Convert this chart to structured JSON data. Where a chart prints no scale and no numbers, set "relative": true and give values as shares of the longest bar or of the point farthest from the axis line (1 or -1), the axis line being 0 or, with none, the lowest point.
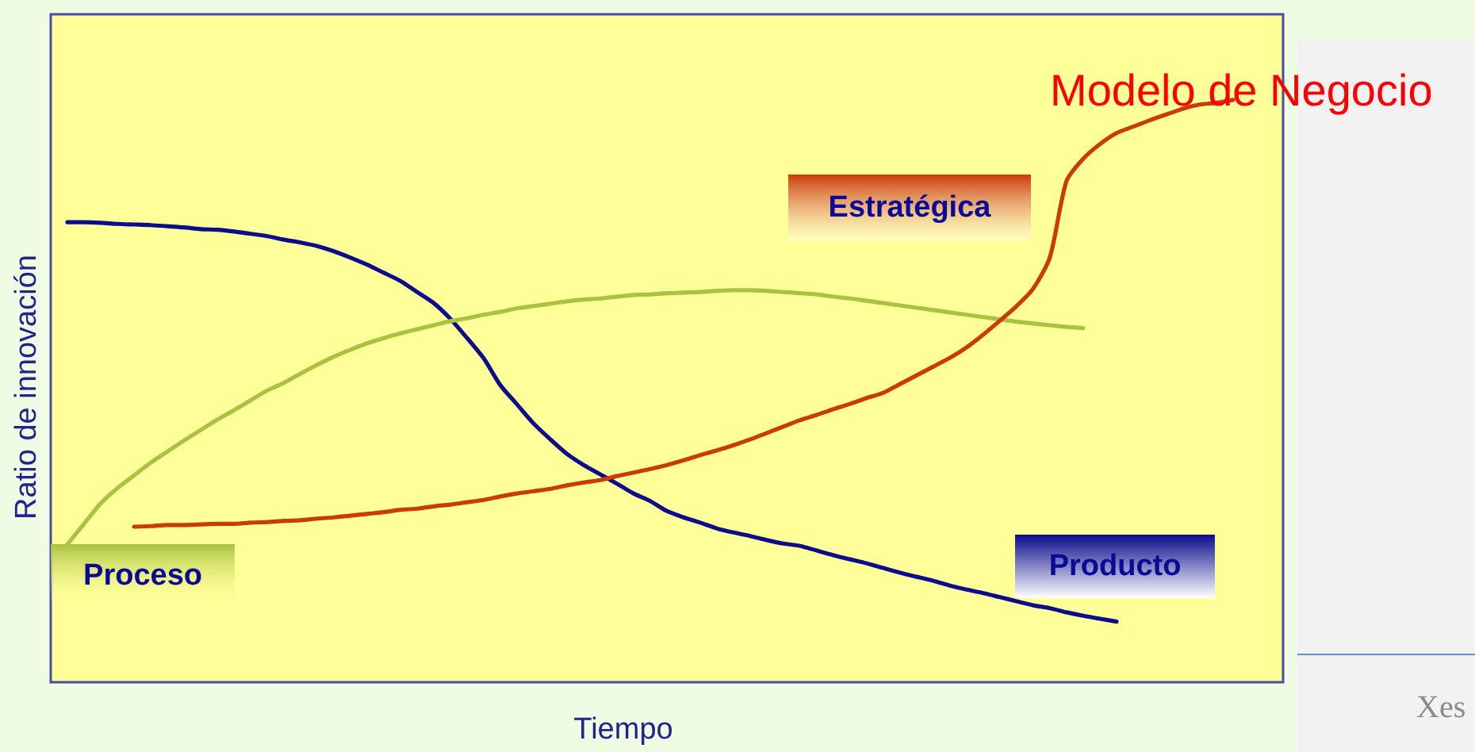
{
  "chart_data": {
    "type": "line",
    "relative": true,
    "marker": "none",
    "xlabel": "Tiempo",
    "ylabel": "Ratio de innovación",
    "annotations": [
      "Modelo de Negocio",
      "Xes"
    ],
    "categories": [
      null,
      null,
      null,
      null,
      null,
      null,
      null,
      null,
      null,
      null,
      null,
      null,
      null,
      null,
      null,
      null,
      null,
      null,
      null,
      null,
      null,
      null,
      null,
      null,
      null,
      null,
      null,
      null,
      null,
      null,
      null,
      null,
      null,
      null,
      null,
      null,
      null,
      null,
      null,
      null,
      null,
      null,
      null,
      null,
      null,
      null,
      null,
      null,
      null,
      null,
      null,
      null,
      null,
      null,
      null,
      null,
      null,
      null,
      null,
      null,
      null,
      null,
      null,
      null,
      null,
      null,
      null,
      null,
      null,
      null,
      null,
      null,
      null,
      null,
      null
    ],
    "series": [
      {
        "name": "Producto",
        "color": "#0c0c8c",
        "values": [
          null,
          0.79,
          0.79,
          0.789,
          0.787,
          0.786,
          0.785,
          0.783,
          0.781,
          0.778,
          0.777,
          0.774,
          0.77,
          0.766,
          0.76,
          0.755,
          0.749,
          0.74,
          0.729,
          0.717,
          0.703,
          0.689,
          0.67,
          0.651,
          0.624,
          0.591,
          0.556,
          0.51,
          0.477,
          0.444,
          0.417,
          0.392,
          0.373,
          0.357,
          0.341,
          0.324,
          0.311,
          0.294,
          0.283,
          0.274,
          0.264,
          0.257,
          0.251,
          0.244,
          0.238,
          0.234,
          0.226,
          0.218,
          0.211,
          0.204,
          0.196,
          0.188,
          0.181,
          0.174,
          0.166,
          0.159,
          0.153,
          0.146,
          0.139,
          0.132,
          0.127,
          0.12,
          0.114,
          0.109,
          0.104,
          null,
          null,
          null,
          null,
          null,
          null,
          null,
          null,
          null,
          null
        ]
      },
      {
        "name": "Proceso",
        "color": "#a9c23f",
        "values": [
          null,
          0.237,
          0.272,
          0.307,
          0.333,
          0.355,
          0.377,
          0.396,
          0.415,
          0.433,
          0.451,
          0.467,
          0.484,
          0.501,
          0.514,
          0.53,
          0.545,
          0.559,
          0.571,
          0.582,
          0.591,
          0.599,
          0.606,
          0.613,
          0.62,
          0.625,
          0.631,
          0.636,
          0.642,
          0.646,
          0.65,
          0.654,
          0.657,
          0.659,
          0.662,
          0.665,
          0.666,
          0.668,
          0.669,
          0.67,
          0.672,
          0.673,
          0.673,
          0.672,
          0.67,
          0.668,
          0.666,
          0.662,
          0.659,
          0.655,
          0.651,
          0.647,
          0.643,
          0.639,
          0.635,
          0.631,
          0.627,
          0.623,
          0.619,
          0.616,
          0.613,
          0.61,
          0.608,
          null,
          null,
          null,
          null,
          null,
          null,
          null,
          null,
          null,
          null,
          null,
          null
        ]
      },
      {
        "name": "Estratégica",
        "color": "#cc3a0a",
        "values": [
          null,
          null,
          null,
          null,
          null,
          0.267,
          0.268,
          0.27,
          0.27,
          0.271,
          0.272,
          0.272,
          0.274,
          0.275,
          0.277,
          0.278,
          0.281,
          0.283,
          0.286,
          0.289,
          0.292,
          0.296,
          0.298,
          0.302,
          0.305,
          0.309,
          0.313,
          0.319,
          0.324,
          0.328,
          0.332,
          0.338,
          0.343,
          0.347,
          0.354,
          0.36,
          0.366,
          0.373,
          0.381,
          0.39,
          0.398,
          0.407,
          0.417,
          0.428,
          0.439,
          0.45,
          0.459,
          0.469,
          0.478,
          0.488,
          0.497,
          0.512,
          0.527,
          0.542,
          0.557,
          0.575,
          0.597,
          0.621,
          0.646,
          0.676,
          0.73,
          0.861,
          0.899,
          0.924,
          0.943,
          0.954,
          0.965,
          0.975,
          0.985,
          0.992,
          0.995,
          1.0,
          null,
          null,
          null
        ]
      }
    ]
  }
}
